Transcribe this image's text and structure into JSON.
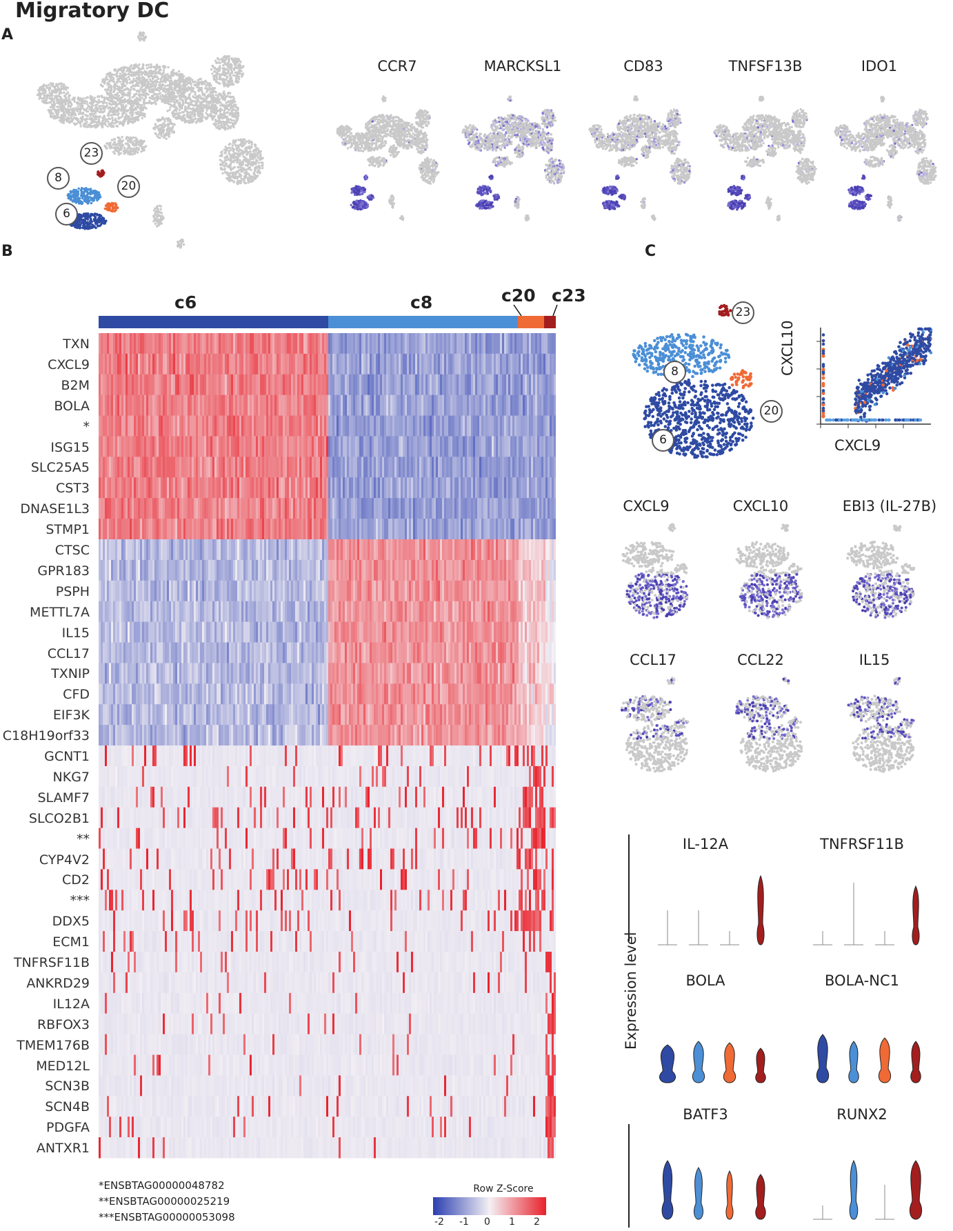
{
  "figure": {
    "title": "Migratory DC",
    "panel_labels": [
      "A",
      "B",
      "C"
    ]
  },
  "panelA": {
    "cluster_labels": [
      "23",
      "8",
      "20",
      "6"
    ],
    "genes": [
      "CCR7",
      "MARCKSL1",
      "CD83",
      "TNFSF13B",
      "IDO1"
    ]
  },
  "panelB": {
    "cluster_bar": [
      {
        "label": "c6",
        "color": "#2e4aa3"
      },
      {
        "label": "c8",
        "color": "#4b8fd6"
      },
      {
        "label": "c20",
        "color": "#f06a36"
      },
      {
        "label": "c23",
        "color": "#a31e1e"
      }
    ],
    "rows": [
      "TXN",
      "CXCL9",
      "B2M",
      "BOLA",
      "*",
      "ISG15",
      "SLC25A5",
      "CST3",
      "DNASE1L3",
      "STMP1",
      "CTSC",
      "GPR183",
      "PSPH",
      "METTL7A",
      "IL15",
      "CCL17",
      "TXNIP",
      "CFD",
      "EIF3K",
      "C18H19orf33",
      "GCNT1",
      "NKG7",
      "SLAMF7",
      "SLCO2B1",
      "**",
      "CYP4V2",
      "CD2",
      "***",
      "DDX5",
      "ECM1",
      "TNFRSF11B",
      "ANKRD29",
      "IL12A",
      "RBFOX3",
      "TMEM176B",
      "MED12L",
      "SCN3B",
      "SCN4B",
      "PDGFA",
      "ANTXR1"
    ],
    "footnotes": [
      "*ENSBTAG00000048782",
      "**ENSBTAG00000025219",
      "***ENSBTAG00000053098"
    ],
    "legend": {
      "title": "Row Z-Score",
      "ticks": [
        "-2",
        "-1",
        "0",
        "1",
        "2"
      ],
      "low_color": "#2b3fb0",
      "mid_color": "#f4f0f4",
      "high_color": "#e8212b"
    }
  },
  "panelC": {
    "cluster_labels": [
      "23",
      "8",
      "20",
      "6"
    ],
    "scatter": {
      "xlabel": "CXCL9",
      "ylabel": "CXCL10"
    },
    "feature_genes": [
      "CXCL9",
      "CXCL10",
      "EBI3 (IL-27B)",
      "CCL17",
      "CCL22",
      "IL15"
    ],
    "violin_ylabel": "Expression level",
    "violins": [
      "IL-12A",
      "TNFRSF11B",
      "BOLA",
      "BOLA-NC1",
      "BATF3",
      "RUNX2"
    ]
  }
}
